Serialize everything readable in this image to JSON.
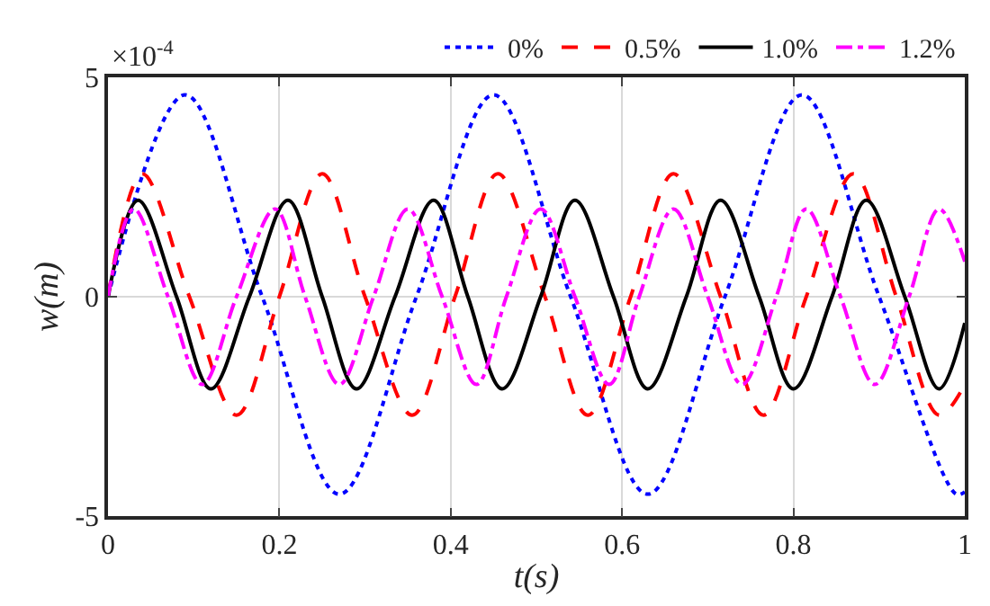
{
  "chart_data": {
    "type": "line",
    "xlabel": "t(s)",
    "ylabel": "w(m)",
    "annotations": [
      "×10$^{-4}$"
    ],
    "xlim": [
      0,
      1
    ],
    "xticks": [
      0,
      0.2,
      0.4,
      0.6,
      0.8,
      1
    ],
    "ylim": [
      -5,
      5
    ],
    "yticks": [
      -5,
      0,
      5
    ],
    "grid": true,
    "legend": "top right",
    "marker": "none",
    "series": [
      {
        "name": "0%",
        "color": "#0000ff",
        "line_style": "dotted",
        "x": [
          0,
          0.09,
          0.18,
          0.27,
          0.36,
          0.45,
          0.54,
          0.63,
          0.72,
          0.81,
          0.9,
          0.99,
          1.0
        ],
        "values": [
          0,
          4.6,
          0,
          -4.5,
          0,
          4.6,
          0,
          -4.5,
          0,
          4.6,
          0,
          -4.5,
          -4.45
        ]
      },
      {
        "name": "0.5%",
        "color": "#ff0000",
        "line_style": "dashed",
        "x": [
          0,
          0.04,
          0.095,
          0.15,
          0.2,
          0.25,
          0.3,
          0.355,
          0.405,
          0.455,
          0.51,
          0.56,
          0.61,
          0.66,
          0.715,
          0.765,
          0.815,
          0.87,
          0.92,
          0.97,
          1.0
        ],
        "values": [
          0,
          2.8,
          0,
          -2.7,
          0,
          2.8,
          0,
          -2.7,
          0,
          2.8,
          0,
          -2.7,
          0,
          2.8,
          0,
          -2.7,
          0,
          2.8,
          0,
          -2.7,
          -2.0
        ]
      },
      {
        "name": "1.0%",
        "color": "#000000",
        "line_style": "solid",
        "x": [
          0,
          0.035,
          0.08,
          0.12,
          0.165,
          0.21,
          0.25,
          0.29,
          0.335,
          0.38,
          0.42,
          0.46,
          0.505,
          0.545,
          0.59,
          0.63,
          0.675,
          0.715,
          0.76,
          0.8,
          0.845,
          0.885,
          0.93,
          0.97,
          1.0
        ],
        "values": [
          0,
          2.2,
          0,
          -2.1,
          0,
          2.2,
          0,
          -2.1,
          0,
          2.2,
          0,
          -2.1,
          0,
          2.2,
          0,
          -2.1,
          0,
          2.2,
          0,
          -2.1,
          0,
          2.2,
          0,
          -2.1,
          -0.6
        ]
      },
      {
        "name": "1.2%",
        "color": "#ff00ff",
        "line_style": "dashdot",
        "x": [
          0,
          0.03,
          0.07,
          0.11,
          0.15,
          0.195,
          0.23,
          0.27,
          0.31,
          0.35,
          0.39,
          0.43,
          0.465,
          0.505,
          0.545,
          0.585,
          0.62,
          0.66,
          0.7,
          0.74,
          0.78,
          0.815,
          0.855,
          0.895,
          0.935,
          0.97,
          1.0
        ],
        "values": [
          0,
          2.0,
          0,
          -2.0,
          0,
          2.0,
          0,
          -2.0,
          0,
          2.0,
          0,
          -2.0,
          0,
          2.0,
          0,
          -2.0,
          0,
          2.0,
          0,
          -2.0,
          0,
          2.0,
          0,
          -2.0,
          0,
          2.0,
          0.8
        ]
      }
    ]
  }
}
